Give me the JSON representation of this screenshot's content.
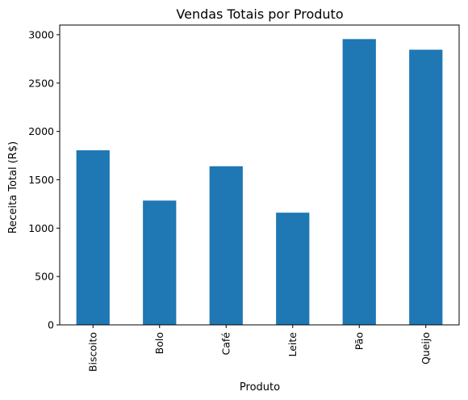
{
  "chart_data": {
    "type": "bar",
    "title": "Vendas Totais por Produto",
    "xlabel": "Produto",
    "ylabel": "Receita Total (R$)",
    "categories": [
      "Biscoito",
      "Bolo",
      "Café",
      "Leite",
      "Pão",
      "Queijo"
    ],
    "values": [
      1805,
      1285,
      1640,
      1160,
      2955,
      2845
    ],
    "ylim": [
      0,
      3100
    ],
    "yticks": [
      0,
      500,
      1000,
      1500,
      2000,
      2500,
      3000
    ],
    "grid": false,
    "legend": "none",
    "bar_color": "#1f77b4"
  }
}
